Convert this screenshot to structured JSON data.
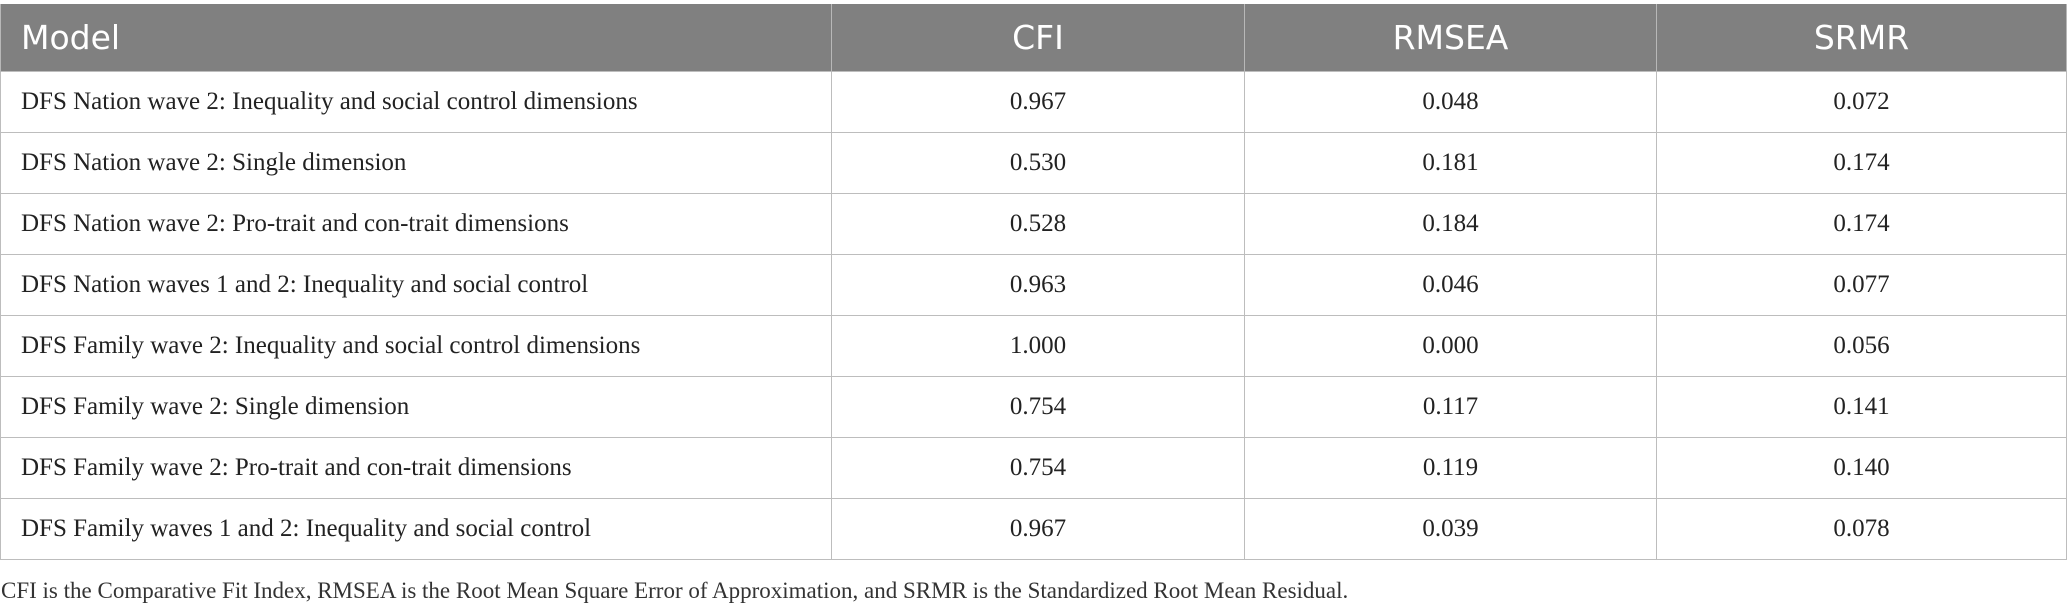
{
  "table": {
    "headers": {
      "model": "Model",
      "cfi": "CFI",
      "rmsea": "RMSEA",
      "srmr": "SRMR"
    },
    "rows": [
      {
        "model": "DFS Nation wave 2: Inequality and social control dimensions",
        "cfi": "0.967",
        "rmsea": "0.048",
        "srmr": "0.072"
      },
      {
        "model": "DFS Nation wave 2: Single dimension",
        "cfi": "0.530",
        "rmsea": "0.181",
        "srmr": "0.174"
      },
      {
        "model": "DFS Nation wave 2: Pro-trait and con-trait dimensions",
        "cfi": "0.528",
        "rmsea": "0.184",
        "srmr": "0.174"
      },
      {
        "model": "DFS Nation waves 1 and 2: Inequality and social control",
        "cfi": "0.963",
        "rmsea": "0.046",
        "srmr": "0.077"
      },
      {
        "model": "DFS Family wave 2: Inequality and social control dimensions",
        "cfi": "1.000",
        "rmsea": "0.000",
        "srmr": "0.056"
      },
      {
        "model": "DFS Family wave 2: Single dimension",
        "cfi": "0.754",
        "rmsea": "0.117",
        "srmr": "0.141"
      },
      {
        "model": "DFS Family wave 2: Pro-trait and con-trait dimensions",
        "cfi": "0.754",
        "rmsea": "0.119",
        "srmr": "0.140"
      },
      {
        "model": "DFS Family waves 1 and 2: Inequality and social control",
        "cfi": "0.967",
        "rmsea": "0.039",
        "srmr": "0.078"
      }
    ]
  },
  "footnote": "CFI is the Comparative Fit Index, RMSEA is the Root Mean Square Error of Approximation, and SRMR is the Standardized Root Mean Residual.",
  "colors": {
    "header_bg": "#808080",
    "header_text": "#ffffff",
    "border": "#bdbdbd"
  }
}
